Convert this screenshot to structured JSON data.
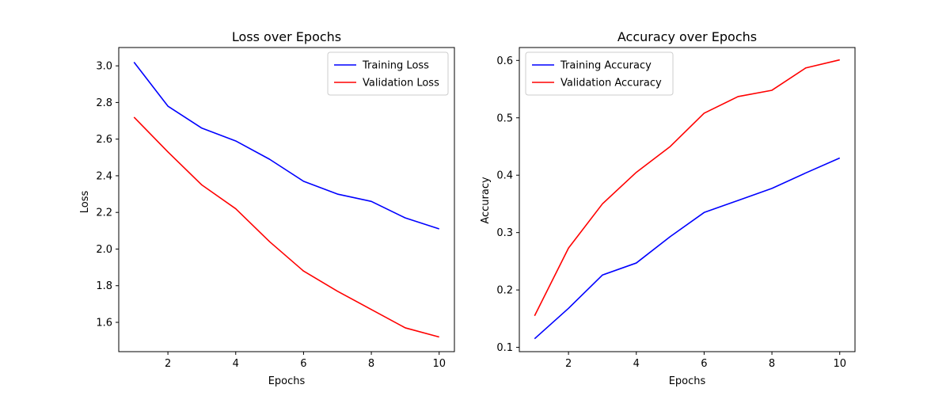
{
  "chart_data": [
    {
      "type": "line",
      "title": "Loss over Epochs",
      "xlabel": "Epochs",
      "ylabel": "Loss",
      "xlim": [
        0.55,
        10.45
      ],
      "ylim": [
        1.44,
        3.1
      ],
      "xticks": [
        2,
        4,
        6,
        8,
        10
      ],
      "yticks": [
        1.6,
        1.8,
        2.0,
        2.2,
        2.4,
        2.6,
        2.8,
        3.0
      ],
      "ytick_decimals": 1,
      "legend_position": "top-right",
      "grid": false,
      "x": [
        1,
        2,
        3,
        4,
        5,
        6,
        7,
        8,
        9,
        10
      ],
      "series": [
        {
          "name": "Training Loss",
          "color": "#0000ff",
          "values": [
            3.02,
            2.78,
            2.66,
            2.59,
            2.49,
            2.37,
            2.3,
            2.26,
            2.17,
            2.11
          ]
        },
        {
          "name": "Validation Loss",
          "color": "#ff0000",
          "values": [
            2.72,
            2.53,
            2.35,
            2.22,
            2.04,
            1.88,
            1.77,
            1.67,
            1.57,
            1.52
          ]
        }
      ]
    },
    {
      "type": "line",
      "title": "Accuracy over Epochs",
      "xlabel": "Epochs",
      "ylabel": "Accuracy",
      "xlim": [
        0.55,
        10.45
      ],
      "ylim": [
        0.0925,
        0.6225
      ],
      "xticks": [
        2,
        4,
        6,
        8,
        10
      ],
      "yticks": [
        0.1,
        0.2,
        0.3,
        0.4,
        0.5,
        0.6
      ],
      "ytick_decimals": 1,
      "legend_position": "top-left",
      "grid": false,
      "x": [
        1,
        2,
        3,
        4,
        5,
        6,
        7,
        8,
        9,
        10
      ],
      "series": [
        {
          "name": "Training Accuracy",
          "color": "#0000ff",
          "values": [
            0.115,
            0.168,
            0.226,
            0.247,
            0.293,
            0.335,
            0.356,
            0.377,
            0.404,
            0.43
          ]
        },
        {
          "name": "Validation Accuracy",
          "color": "#ff0000",
          "values": [
            0.155,
            0.273,
            0.35,
            0.405,
            0.45,
            0.508,
            0.537,
            0.548,
            0.587,
            0.601
          ]
        }
      ]
    }
  ]
}
